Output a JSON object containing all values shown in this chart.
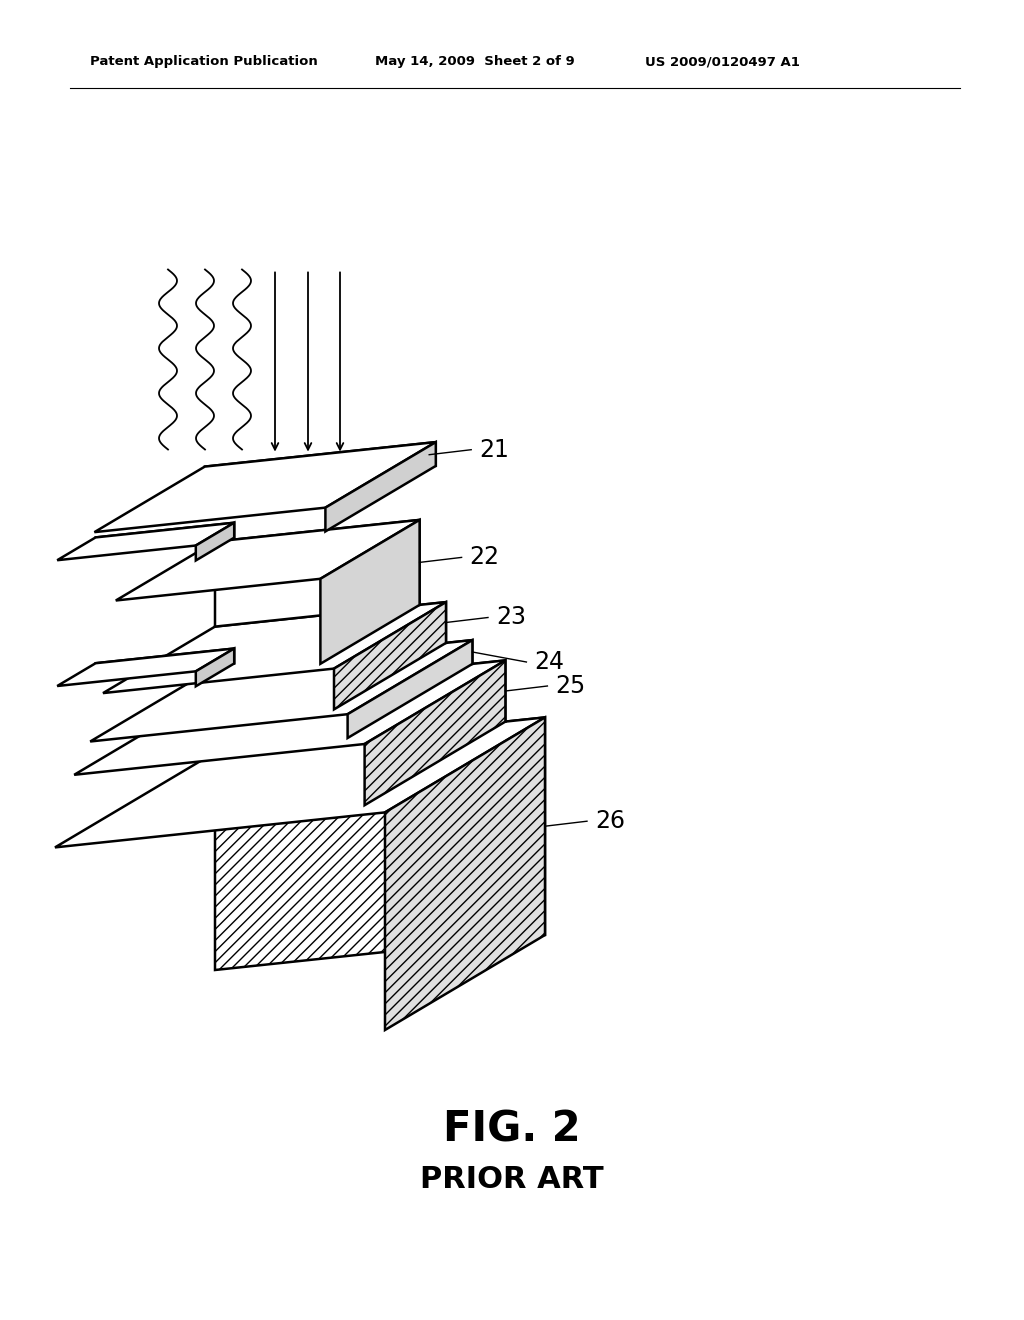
{
  "header_left": "Patent Application Publication",
  "header_center": "May 14, 2009  Sheet 2 of 9",
  "header_right": "US 2009/0120497 A1",
  "fig_label": "FIG. 2",
  "fig_sublabel": "PRIOR ART",
  "bg_color": "#ffffff",
  "line_color": "#000000"
}
